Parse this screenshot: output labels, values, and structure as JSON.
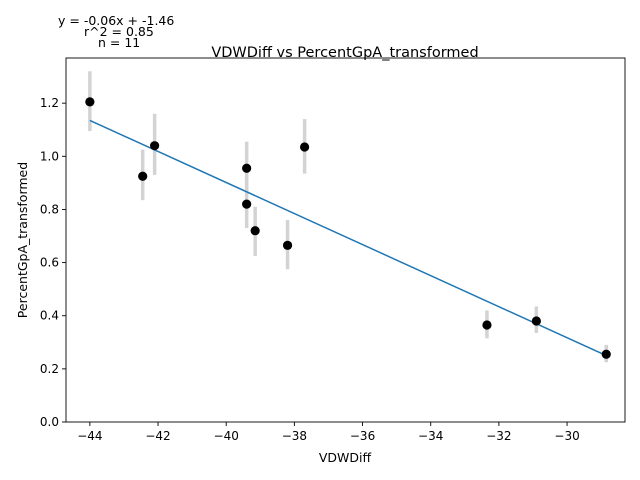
{
  "chart_data": {
    "type": "scatter",
    "title": "VDWDiff vs PercentGpA_transformed",
    "xlabel": "VDWDiff",
    "ylabel": "PercentGpA_transformed",
    "xlim": [
      -44.7,
      -28.3
    ],
    "ylim": [
      0.0,
      1.37
    ],
    "xticks": [
      -44,
      -42,
      -40,
      -38,
      -36,
      -34,
      -32,
      -30
    ],
    "yticks": [
      0.0,
      0.2,
      0.4,
      0.6,
      0.8,
      1.0,
      1.2
    ],
    "xtick_labels": [
      "−44",
      "−42",
      "−40",
      "−38",
      "−36",
      "−34",
      "−32",
      "−30"
    ],
    "ytick_labels": [
      "0.0",
      "0.2",
      "0.4",
      "0.6",
      "0.8",
      "1.0",
      "1.2"
    ],
    "grid": false,
    "annotations": [
      "y = -0.06x + -1.46",
      "r^2 = 0.85",
      "n = 11"
    ],
    "points": [
      {
        "x": -44.0,
        "y": 1.205,
        "err_lo": 1.095,
        "err_hi": 1.32
      },
      {
        "x": -42.45,
        "y": 0.925,
        "err_lo": 0.835,
        "err_hi": 1.025
      },
      {
        "x": -42.1,
        "y": 1.04,
        "err_lo": 0.93,
        "err_hi": 1.16
      },
      {
        "x": -39.4,
        "y": 0.955,
        "err_lo": 0.855,
        "err_hi": 1.055
      },
      {
        "x": -39.4,
        "y": 0.82,
        "err_lo": 0.73,
        "err_hi": 0.92
      },
      {
        "x": -39.15,
        "y": 0.72,
        "err_lo": 0.625,
        "err_hi": 0.81
      },
      {
        "x": -37.7,
        "y": 1.035,
        "err_lo": 0.935,
        "err_hi": 1.14
      },
      {
        "x": -38.2,
        "y": 0.665,
        "err_lo": 0.575,
        "err_hi": 0.76
      },
      {
        "x": -32.35,
        "y": 0.365,
        "err_lo": 0.315,
        "err_hi": 0.42
      },
      {
        "x": -30.9,
        "y": 0.38,
        "err_lo": 0.335,
        "err_hi": 0.435
      },
      {
        "x": -28.85,
        "y": 0.255,
        "err_lo": 0.225,
        "err_hi": 0.29
      }
    ],
    "fit_line": {
      "x": [
        -44.0,
        -28.85
      ],
      "y": [
        1.135,
        0.25
      ]
    },
    "colors": {
      "points": "#000000",
      "errorbars": "#d3d3d3",
      "fit": "#1f77b4"
    }
  }
}
